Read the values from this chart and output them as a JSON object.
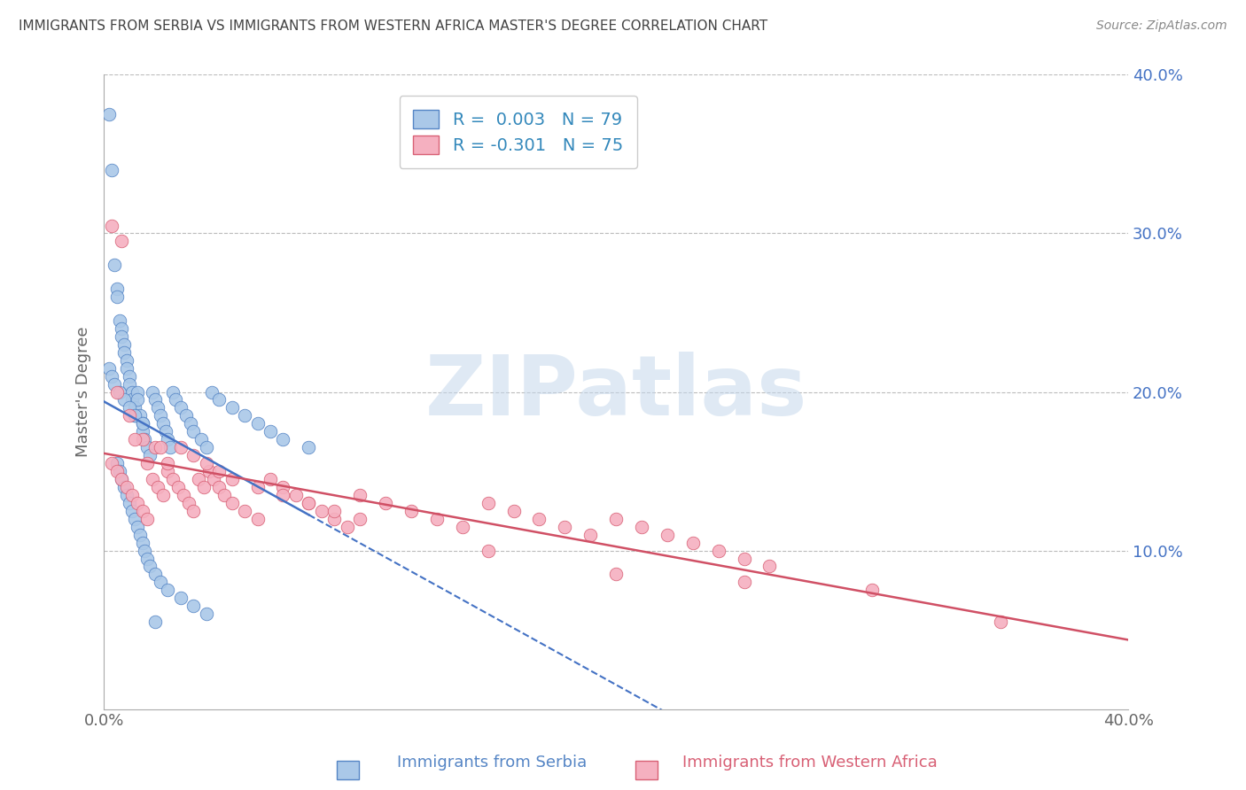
{
  "title": "IMMIGRANTS FROM SERBIA VS IMMIGRANTS FROM WESTERN AFRICA MASTER'S DEGREE CORRELATION CHART",
  "source": "Source: ZipAtlas.com",
  "ylabel": "Master's Degree",
  "xlim": [
    0.0,
    0.4
  ],
  "ylim": [
    0.0,
    0.4
  ],
  "serbia_R": 0.003,
  "serbia_N": 79,
  "western_africa_R": -0.301,
  "western_africa_N": 75,
  "serbia_color": "#aac8e8",
  "western_africa_color": "#f5b0c0",
  "serbia_edge_color": "#5585c5",
  "western_africa_edge_color": "#d86075",
  "serbia_line_color": "#4472c4",
  "western_africa_line_color": "#d05065",
  "background_color": "#ffffff",
  "watermark_text": "ZIPatlas",
  "watermark_color": "#c5d8ec",
  "serbia_x": [
    0.002,
    0.003,
    0.004,
    0.005,
    0.005,
    0.006,
    0.007,
    0.007,
    0.008,
    0.008,
    0.009,
    0.009,
    0.01,
    0.01,
    0.011,
    0.011,
    0.012,
    0.012,
    0.013,
    0.013,
    0.014,
    0.015,
    0.015,
    0.016,
    0.017,
    0.018,
    0.019,
    0.02,
    0.021,
    0.022,
    0.023,
    0.024,
    0.025,
    0.026,
    0.027,
    0.028,
    0.03,
    0.032,
    0.034,
    0.035,
    0.038,
    0.04,
    0.042,
    0.045,
    0.05,
    0.055,
    0.06,
    0.065,
    0.07,
    0.08,
    0.005,
    0.006,
    0.007,
    0.008,
    0.009,
    0.01,
    0.011,
    0.012,
    0.013,
    0.014,
    0.015,
    0.016,
    0.017,
    0.018,
    0.02,
    0.022,
    0.025,
    0.03,
    0.035,
    0.04,
    0.002,
    0.003,
    0.004,
    0.006,
    0.008,
    0.01,
    0.012,
    0.015,
    0.02
  ],
  "serbia_y": [
    0.375,
    0.34,
    0.28,
    0.265,
    0.26,
    0.245,
    0.24,
    0.235,
    0.23,
    0.225,
    0.22,
    0.215,
    0.21,
    0.205,
    0.2,
    0.195,
    0.19,
    0.185,
    0.2,
    0.195,
    0.185,
    0.18,
    0.175,
    0.17,
    0.165,
    0.16,
    0.2,
    0.195,
    0.19,
    0.185,
    0.18,
    0.175,
    0.17,
    0.165,
    0.2,
    0.195,
    0.19,
    0.185,
    0.18,
    0.175,
    0.17,
    0.165,
    0.2,
    0.195,
    0.19,
    0.185,
    0.18,
    0.175,
    0.17,
    0.165,
    0.155,
    0.15,
    0.145,
    0.14,
    0.135,
    0.13,
    0.125,
    0.12,
    0.115,
    0.11,
    0.105,
    0.1,
    0.095,
    0.09,
    0.085,
    0.08,
    0.075,
    0.07,
    0.065,
    0.06,
    0.215,
    0.21,
    0.205,
    0.2,
    0.195,
    0.19,
    0.185,
    0.18,
    0.055
  ],
  "western_africa_x": [
    0.003,
    0.005,
    0.007,
    0.009,
    0.011,
    0.013,
    0.015,
    0.017,
    0.019,
    0.021,
    0.023,
    0.025,
    0.027,
    0.029,
    0.031,
    0.033,
    0.035,
    0.037,
    0.039,
    0.041,
    0.043,
    0.045,
    0.047,
    0.05,
    0.055,
    0.06,
    0.065,
    0.07,
    0.075,
    0.08,
    0.085,
    0.09,
    0.095,
    0.1,
    0.11,
    0.12,
    0.13,
    0.14,
    0.15,
    0.16,
    0.17,
    0.18,
    0.19,
    0.2,
    0.21,
    0.22,
    0.23,
    0.24,
    0.25,
    0.26,
    0.005,
    0.01,
    0.015,
    0.02,
    0.025,
    0.03,
    0.035,
    0.04,
    0.045,
    0.05,
    0.06,
    0.07,
    0.08,
    0.09,
    0.1,
    0.15,
    0.2,
    0.25,
    0.3,
    0.35,
    0.003,
    0.007,
    0.012,
    0.017,
    0.022
  ],
  "western_africa_y": [
    0.155,
    0.15,
    0.145,
    0.14,
    0.135,
    0.13,
    0.125,
    0.12,
    0.145,
    0.14,
    0.135,
    0.15,
    0.145,
    0.14,
    0.135,
    0.13,
    0.125,
    0.145,
    0.14,
    0.15,
    0.145,
    0.14,
    0.135,
    0.13,
    0.125,
    0.12,
    0.145,
    0.14,
    0.135,
    0.13,
    0.125,
    0.12,
    0.115,
    0.135,
    0.13,
    0.125,
    0.12,
    0.115,
    0.13,
    0.125,
    0.12,
    0.115,
    0.11,
    0.12,
    0.115,
    0.11,
    0.105,
    0.1,
    0.095,
    0.09,
    0.2,
    0.185,
    0.17,
    0.165,
    0.155,
    0.165,
    0.16,
    0.155,
    0.15,
    0.145,
    0.14,
    0.135,
    0.13,
    0.125,
    0.12,
    0.1,
    0.085,
    0.08,
    0.075,
    0.055,
    0.305,
    0.295,
    0.17,
    0.155,
    0.165
  ]
}
